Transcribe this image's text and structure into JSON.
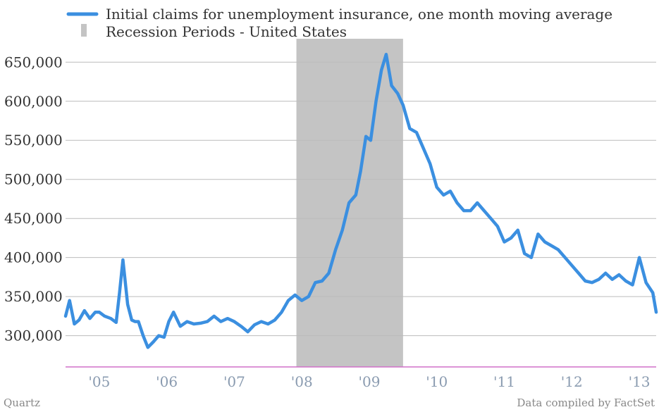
{
  "chart_data": {
    "type": "line",
    "legend": [
      {
        "label": "Initial claims for unemployment insurance, one month moving average",
        "color": "#3b8fe0",
        "kind": "line"
      },
      {
        "label": "Recession Periods - United States",
        "color": "#c4c4c4",
        "kind": "band"
      }
    ],
    "legend_placement": "top",
    "ylim": [
      260000,
      680000
    ],
    "yticks": [
      300000,
      350000,
      400000,
      450000,
      500000,
      550000,
      600000,
      650000
    ],
    "ytick_labels": [
      "300,000",
      "350,000",
      "400,000",
      "450,000",
      "500,000",
      "550,000",
      "600,000",
      "650,000"
    ],
    "xlim": [
      2004.5,
      2013.25
    ],
    "xticks": [
      2005,
      2006,
      2007,
      2008,
      2009,
      2010,
      2011,
      2012,
      2013
    ],
    "xtick_labels": [
      "'05",
      "'06",
      "'07",
      "'08",
      "'09",
      "'10",
      "'11",
      "'12",
      "'13"
    ],
    "grid": "horizontal",
    "recession": {
      "start": 2007.92,
      "end": 2009.5
    },
    "series": [
      {
        "name": "Initial claims for unemployment insurance, one month moving average",
        "color": "#3b8fe0",
        "x": [
          2004.5,
          2004.56,
          2004.63,
          2004.7,
          2004.78,
          2004.86,
          2004.94,
          2005.0,
          2005.08,
          2005.17,
          2005.25,
          2005.3,
          2005.35,
          2005.42,
          2005.48,
          2005.53,
          2005.58,
          2005.65,
          2005.72,
          2005.8,
          2005.88,
          2005.96,
          2006.03,
          2006.1,
          2006.2,
          2006.3,
          2006.4,
          2006.5,
          2006.6,
          2006.7,
          2006.8,
          2006.9,
          2007.0,
          2007.1,
          2007.2,
          2007.3,
          2007.4,
          2007.5,
          2007.6,
          2007.7,
          2007.8,
          2007.9,
          2008.0,
          2008.1,
          2008.2,
          2008.3,
          2008.4,
          2008.5,
          2008.6,
          2008.7,
          2008.8,
          2008.87,
          2008.95,
          2009.02,
          2009.1,
          2009.18,
          2009.25,
          2009.33,
          2009.42,
          2009.5,
          2009.6,
          2009.7,
          2009.8,
          2009.9,
          2010.0,
          2010.1,
          2010.2,
          2010.3,
          2010.4,
          2010.5,
          2010.6,
          2010.7,
          2010.8,
          2010.9,
          2011.0,
          2011.1,
          2011.2,
          2011.3,
          2011.4,
          2011.5,
          2011.6,
          2011.7,
          2011.8,
          2011.9,
          2012.0,
          2012.1,
          2012.2,
          2012.3,
          2012.4,
          2012.5,
          2012.6,
          2012.7,
          2012.8,
          2012.9,
          2013.0,
          2013.1,
          2013.2,
          2013.25
        ],
        "values": [
          325000,
          345000,
          315000,
          320000,
          332000,
          322000,
          330000,
          330000,
          325000,
          322000,
          317000,
          355000,
          397000,
          340000,
          320000,
          318000,
          318000,
          300000,
          285000,
          292000,
          300000,
          298000,
          318000,
          330000,
          312000,
          318000,
          315000,
          316000,
          318000,
          325000,
          318000,
          322000,
          318000,
          312000,
          305000,
          314000,
          318000,
          315000,
          320000,
          330000,
          345000,
          352000,
          345000,
          350000,
          368000,
          370000,
          380000,
          410000,
          435000,
          470000,
          480000,
          510000,
          555000,
          550000,
          600000,
          640000,
          660000,
          620000,
          610000,
          595000,
          565000,
          560000,
          540000,
          520000,
          490000,
          480000,
          485000,
          470000,
          460000,
          460000,
          470000,
          460000,
          450000,
          440000,
          420000,
          425000,
          435000,
          405000,
          400000,
          430000,
          420000,
          415000,
          410000,
          400000,
          390000,
          380000,
          370000,
          368000,
          372000,
          380000,
          372000,
          378000,
          370000,
          365000,
          400000,
          368000,
          355000,
          330000
        ]
      }
    ],
    "footnote_left": "Quartz",
    "footnote_right": "Data compiled by FactSet"
  }
}
